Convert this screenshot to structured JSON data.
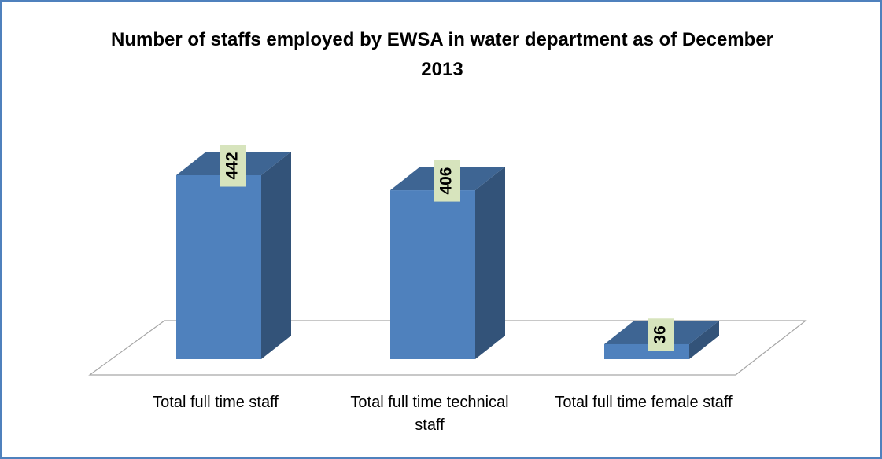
{
  "chart_data": {
    "type": "bar3d",
    "title": "Number of staffs employed by EWSA in water department as of December 2013",
    "categories": [
      "Total full time staff",
      "Total full time technical staff",
      "Total full time female staff"
    ],
    "values": [
      442,
      406,
      36
    ],
    "color": "#4f81bd"
  }
}
